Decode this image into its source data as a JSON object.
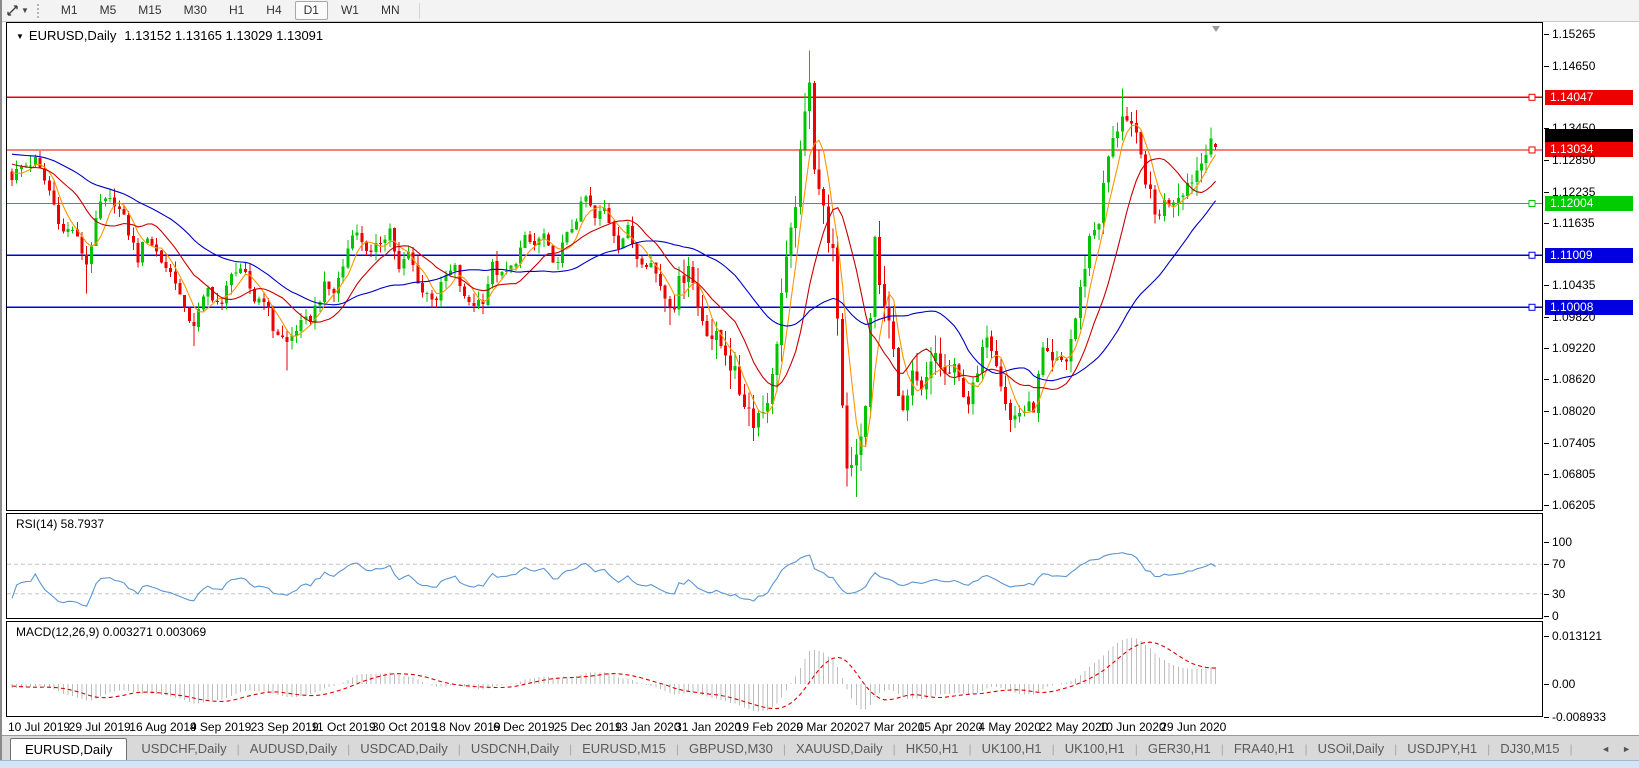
{
  "toolbar": {
    "timeframes": [
      "M1",
      "M5",
      "M15",
      "M30",
      "H1",
      "H4",
      "D1",
      "W1",
      "MN"
    ],
    "active_timeframe": "D1",
    "tool_icon": "crosshair-tool",
    "dropdown_glyph": "▼"
  },
  "chart": {
    "title_symbol": "EURUSD,Daily",
    "title_ohlc": "1.13152 1.13165 1.13029 1.13091",
    "open": "1.13152",
    "high": "1.13165",
    "low": "1.13029",
    "close": "1.13091",
    "dropdown_glyph": "▼"
  },
  "chart_data": {
    "type": "candlestick",
    "symbol": "EURUSD",
    "timeframe": "Daily",
    "x_labels": [
      "10 Jul 2019",
      "29 Jul 2019",
      "16 Aug 2019",
      "4 Sep 2019",
      "23 Sep 2019",
      "11 Oct 2019",
      "30 Oct 2019",
      "18 Nov 2019",
      "6 Dec 2019",
      "25 Dec 2019",
      "13 Jan 2020",
      "31 Jan 2020",
      "19 Feb 2020",
      "9 Mar 2020",
      "27 Mar 2020",
      "15 Apr 2020",
      "4 May 2020",
      "22 May 2020",
      "10 Jun 2020",
      "29 Jun 2020"
    ],
    "days_per_label": 13,
    "num_candles": 259,
    "y_ticks": [
      "1.15265",
      "1.14650",
      "1.13450",
      "1.12850",
      "1.12235",
      "1.11635",
      "1.10435",
      "1.09820",
      "1.09220",
      "1.08620",
      "1.08020",
      "1.07405",
      "1.06805",
      "1.06205"
    ],
    "y_range": [
      1.06109,
      1.15476
    ],
    "colors": {
      "up": "#00c400",
      "down": "#ee0000",
      "rsi_line": "#5a96d2",
      "macd_bar": "#bdbdbd",
      "macd_signal": "#dd0000"
    },
    "hlines": [
      {
        "price": 1.14047,
        "color": "#ee0000",
        "label": "1.14047"
      },
      {
        "price": 1.13034,
        "color": "#ee0000",
        "label": "1.13034"
      },
      {
        "price": 1.12004,
        "color": "#00cc00",
        "label": "1.12004"
      },
      {
        "price": 1.11009,
        "color": "#0000e0",
        "label": "1.11009"
      },
      {
        "price": 1.10008,
        "color": "#0000e0",
        "label": "1.10008"
      }
    ],
    "bid_price": 1.13091,
    "moving_averages": [
      {
        "period": 5,
        "color": "#ff9500"
      },
      {
        "period": 13,
        "color": "#c80000"
      },
      {
        "period": 34,
        "color": "#0000c8"
      }
    ],
    "last_candle": {
      "open": 1.13152,
      "high": 1.13165,
      "low": 1.13029,
      "close": 1.13091
    },
    "price_anchors": [
      [
        0,
        1.1253
      ],
      [
        2,
        1.127
      ],
      [
        5,
        1.1283
      ],
      [
        8,
        1.1225
      ],
      [
        11,
        1.1145
      ],
      [
        13,
        1.1152
      ],
      [
        16,
        1.1085
      ],
      [
        19,
        1.12
      ],
      [
        22,
        1.1205
      ],
      [
        24,
        1.117
      ],
      [
        27,
        1.1095
      ],
      [
        29,
        1.114
      ],
      [
        32,
        1.109
      ],
      [
        35,
        1.1055
      ],
      [
        37,
        1.099
      ],
      [
        39,
        1.097
      ],
      [
        42,
        1.1035
      ],
      [
        45,
        1.1
      ],
      [
        47,
        1.1074
      ],
      [
        50,
        1.106
      ],
      [
        52,
        1.1015
      ],
      [
        54,
        1.102
      ],
      [
        56,
        1.096
      ],
      [
        59,
        1.0932
      ],
      [
        61,
        1.096
      ],
      [
        64,
        1.098
      ],
      [
        67,
        1.104
      ],
      [
        69,
        1.103
      ],
      [
        71,
        1.108
      ],
      [
        73,
        1.115
      ],
      [
        75,
        1.113
      ],
      [
        77,
        1.11
      ],
      [
        79,
        1.1128
      ],
      [
        81,
        1.1152
      ],
      [
        83,
        1.107
      ],
      [
        85,
        1.1105
      ],
      [
        88,
        1.103
      ],
      [
        91,
        1.102
      ],
      [
        93,
        1.106
      ],
      [
        95,
        1.1075
      ],
      [
        97,
        1.1015
      ],
      [
        99,
        1.1008
      ],
      [
        101,
        1.1017
      ],
      [
        103,
        1.108
      ],
      [
        105,
        1.106
      ],
      [
        107,
        1.1075
      ],
      [
        110,
        1.113
      ],
      [
        112,
        1.112
      ],
      [
        114,
        1.114
      ],
      [
        116,
        1.1078
      ],
      [
        118,
        1.1118
      ],
      [
        120,
        1.1155
      ],
      [
        123,
        1.1212
      ],
      [
        125,
        1.117
      ],
      [
        127,
        1.119
      ],
      [
        130,
        1.1122
      ],
      [
        132,
        1.115
      ],
      [
        134,
        1.1098
      ],
      [
        137,
        1.1085
      ],
      [
        140,
        1.1025
      ],
      [
        142,
        1.1015
      ],
      [
        145,
        1.1093
      ],
      [
        147,
        1.1
      ],
      [
        150,
        1.0945
      ],
      [
        153,
        1.092
      ],
      [
        156,
        1.084
      ],
      [
        159,
        1.0788
      ],
      [
        161,
        1.0805
      ],
      [
        163,
        1.086
      ],
      [
        165,
        1.1027
      ],
      [
        167,
        1.1135
      ],
      [
        169,
        1.1285
      ],
      [
        171,
        1.145
      ],
      [
        172,
        1.128
      ],
      [
        174,
        1.1183
      ],
      [
        176,
        1.11
      ],
      [
        178,
        1.082
      ],
      [
        179,
        1.0692
      ],
      [
        181,
        1.0727
      ],
      [
        183,
        1.08
      ],
      [
        185,
        1.1147
      ],
      [
        186,
        1.1031
      ],
      [
        188,
        1.097
      ],
      [
        191,
        1.0791
      ],
      [
        193,
        1.086
      ],
      [
        195,
        1.083
      ],
      [
        198,
        1.091
      ],
      [
        200,
        1.087
      ],
      [
        202,
        1.088
      ],
      [
        205,
        1.082
      ],
      [
        207,
        1.087
      ],
      [
        209,
        1.0955
      ],
      [
        211,
        1.09
      ],
      [
        214,
        1.0783
      ],
      [
        216,
        1.08
      ],
      [
        219,
        1.081
      ],
      [
        221,
        1.0916
      ],
      [
        223,
        1.089
      ],
      [
        226,
        1.09
      ],
      [
        228,
        1.098
      ],
      [
        231,
        1.1135
      ],
      [
        233,
        1.117
      ],
      [
        235,
        1.129
      ],
      [
        238,
        1.1375
      ],
      [
        240,
        1.134
      ],
      [
        241,
        1.1324
      ],
      [
        243,
        1.125
      ],
      [
        245,
        1.1177
      ],
      [
        247,
        1.12
      ],
      [
        250,
        1.1219
      ],
      [
        253,
        1.125
      ],
      [
        255,
        1.128
      ],
      [
        256,
        1.131
      ],
      [
        257,
        1.133
      ],
      [
        258,
        1.13091
      ]
    ],
    "spikes": [
      [
        16,
        "low",
        1.1027
      ],
      [
        39,
        "low",
        1.0926
      ],
      [
        59,
        "low",
        1.0879
      ],
      [
        159,
        "low",
        1.0778
      ],
      [
        171,
        "high",
        1.1495
      ],
      [
        179,
        "low",
        1.0656
      ],
      [
        181,
        "low",
        1.0636
      ],
      [
        238,
        "high",
        1.1422
      ],
      [
        257,
        "high",
        1.1345
      ]
    ],
    "indicators": {
      "rsi": {
        "label": "RSI(14) 58.7937",
        "period": 14,
        "value": 58.7937,
        "levels": [
          70,
          30
        ],
        "y_ticks": [
          100,
          70,
          30,
          0
        ]
      },
      "macd": {
        "label": "MACD(12,26,9) 0.003271 0.003069",
        "fast": 12,
        "slow": 26,
        "signal": 9,
        "value": 0.003271,
        "signal_value": 0.003069,
        "range": [
          -0.008933,
          0.013121
        ],
        "y_ticks": [
          "0.013121",
          "0.00",
          "-0.008933"
        ]
      }
    }
  },
  "tabbar": {
    "tabs": [
      "EURUSD,Daily",
      "USDCHF,Daily",
      "AUDUSD,Daily",
      "USDCAD,Daily",
      "USDCNH,Daily",
      "EURUSD,M15",
      "GBPUSD,M30",
      "XAUUSD,Daily",
      "HK50,H1",
      "UK100,H1",
      "UK100,H1",
      "GER30,H1",
      "FRA40,H1",
      "USOil,Daily",
      "USDJPY,H1",
      "DJ30,M15"
    ],
    "active_index": 0,
    "scroll_left_glyph": "◄",
    "scroll_right_glyph": "►"
  }
}
